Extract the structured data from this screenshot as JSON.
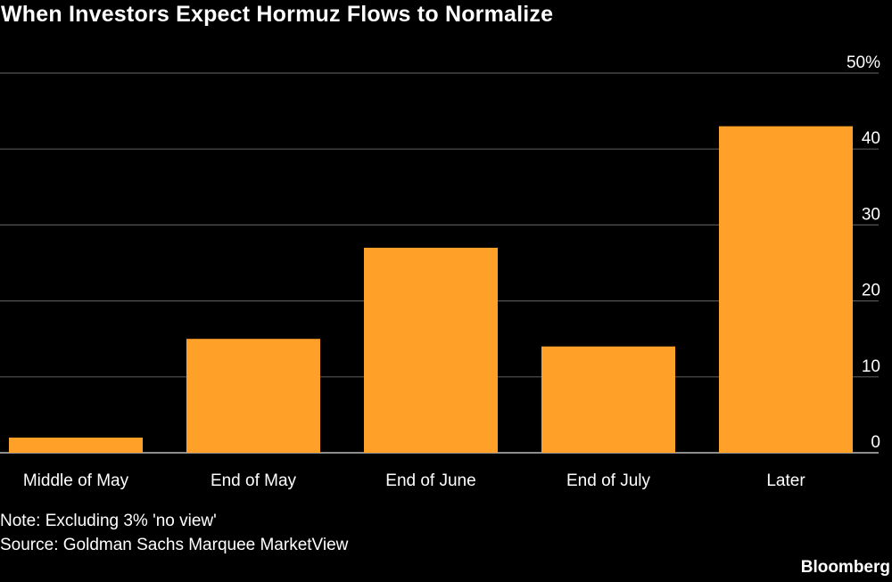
{
  "header": {
    "title": "When Investors Expect Hormuz Flows to Normalize"
  },
  "chart_data": {
    "type": "bar",
    "categories": [
      "Middle of May",
      "End of May",
      "End of June",
      "End of July",
      "Later"
    ],
    "series": [
      {
        "values": [
          2,
          15,
          27,
          14,
          43
        ]
      }
    ],
    "y_ticks": [
      {
        "value": 0,
        "label": "0"
      },
      {
        "value": 10,
        "label": "10"
      },
      {
        "value": 20,
        "label": "20"
      },
      {
        "value": 30,
        "label": "30"
      },
      {
        "value": 40,
        "label": "40"
      },
      {
        "value": 50,
        "label": "50%"
      }
    ],
    "ylim": [
      0,
      50
    ],
    "grid": true,
    "y_axis_position": "right",
    "bar_color": "#FFA028",
    "grid_color": "#555555"
  },
  "footer": {
    "note": "Note: Excluding 3% 'no view'",
    "source": "Source: Goldman Sachs Marquee MarketView",
    "brand": "Bloomberg"
  }
}
